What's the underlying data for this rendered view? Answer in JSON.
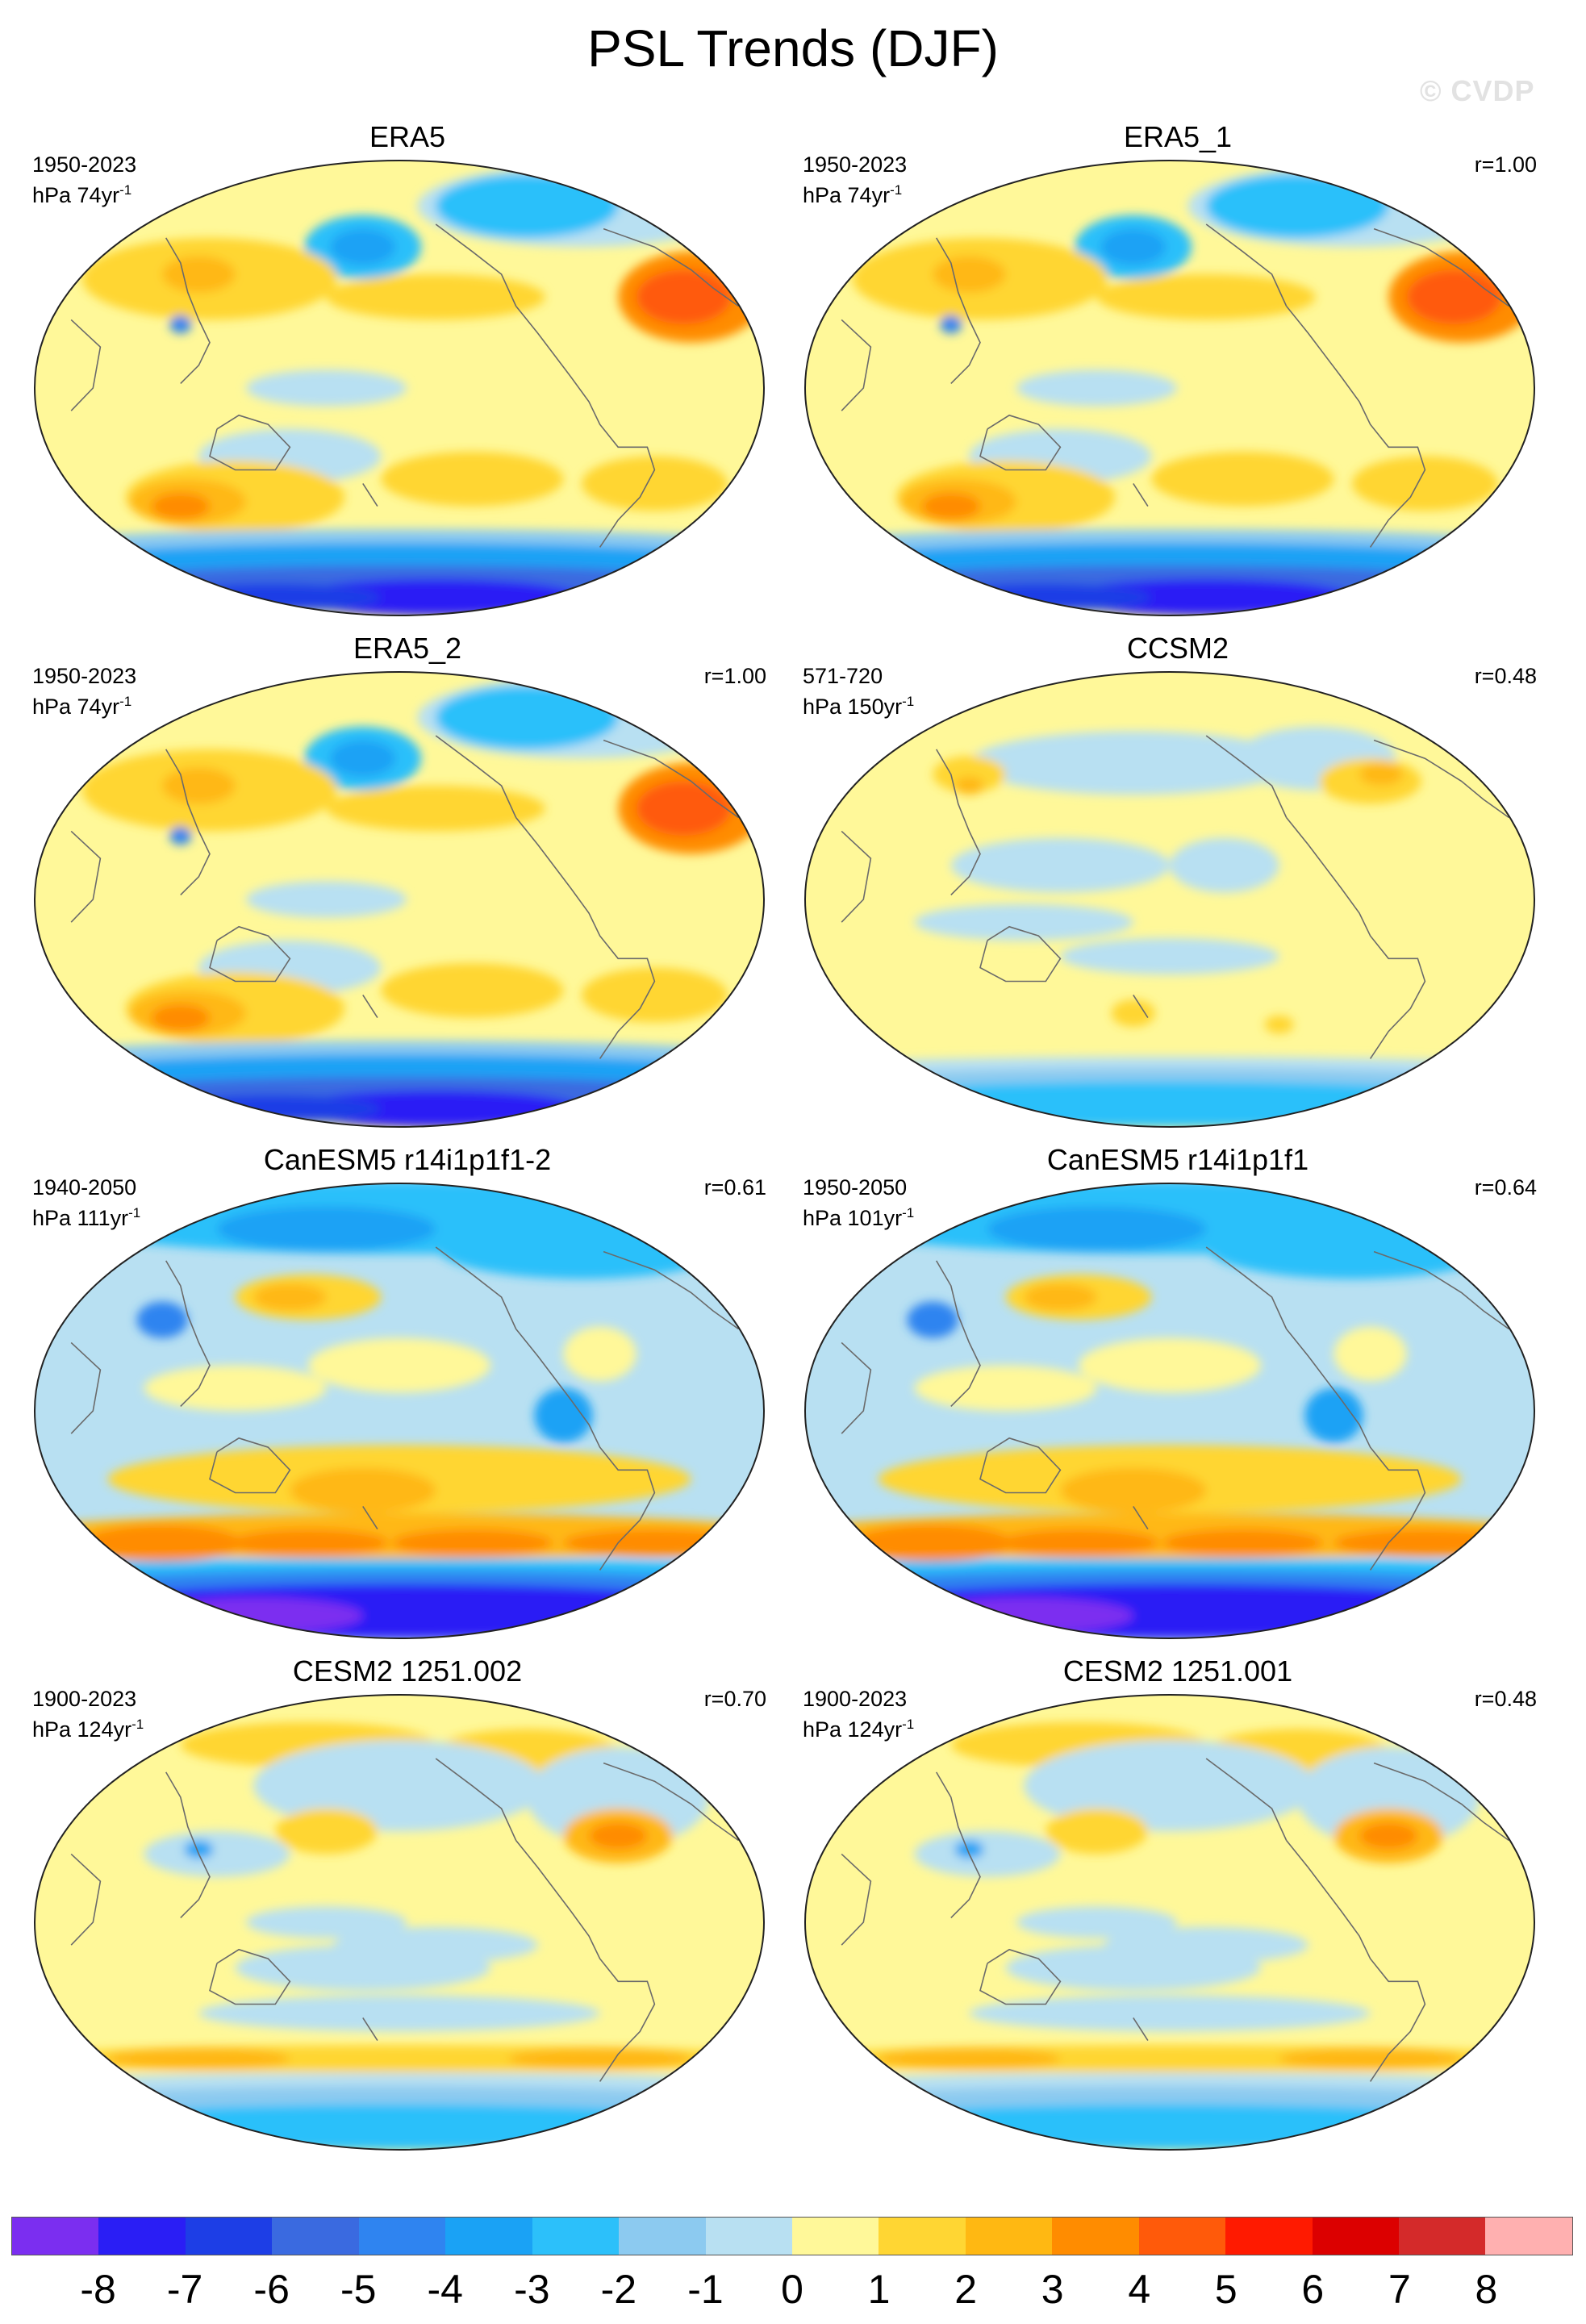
{
  "title": "PSL Trends (DJF)",
  "watermark": "© CVDP",
  "panels": [
    {
      "title": "ERA5",
      "period": "1950-2023",
      "units": "hPa 74yr",
      "units_exp": "-1",
      "corr": "",
      "style": "era"
    },
    {
      "title": "ERA5_1",
      "period": "1950-2023",
      "units": "hPa 74yr",
      "units_exp": "-1",
      "corr": "r=1.00",
      "style": "era"
    },
    {
      "title": "ERA5_2",
      "period": "1950-2023",
      "units": "hPa 74yr",
      "units_exp": "-1",
      "corr": "r=1.00",
      "style": "era"
    },
    {
      "title": "CCSM2",
      "period": "571-720",
      "units": "hPa 150yr",
      "units_exp": "-1",
      "corr": "r=0.48",
      "style": "weak"
    },
    {
      "title": "CanESM5 r14i1p1f1-2",
      "period": "1940-2050",
      "units": "hPa 111yr",
      "units_exp": "-1",
      "corr": "r=0.61",
      "style": "canesm"
    },
    {
      "title": "CanESM5 r14i1p1f1",
      "period": "1950-2050",
      "units": "hPa 101yr",
      "units_exp": "-1",
      "corr": "r=0.64",
      "style": "canesm"
    },
    {
      "title": "CESM2 1251.002",
      "period": "1900-2023",
      "units": "hPa 124yr",
      "units_exp": "-1",
      "corr": "r=0.70",
      "style": "cesm"
    },
    {
      "title": "CESM2 1251.001",
      "period": "1900-2023",
      "units": "hPa 124yr",
      "units_exp": "-1",
      "corr": "r=0.48",
      "style": "cesm"
    }
  ],
  "colorbar": {
    "colors": [
      "#7b2ef0",
      "#2a1ef5",
      "#1d3ee6",
      "#3a6ae0",
      "#2f84f0",
      "#1aa2f5",
      "#2cc0fa",
      "#8ccaf0",
      "#b8e0f2",
      "#fff899",
      "#ffd633",
      "#ffb812",
      "#ff8c00",
      "#ff5a0a",
      "#ff1a00",
      "#dc0000",
      "#d42a2a",
      "#ffb0b0"
    ],
    "labels": [
      "-8",
      "-7",
      "-6",
      "-5",
      "-4",
      "-3",
      "-2",
      "-1",
      "0",
      "1",
      "2",
      "3",
      "4",
      "5",
      "6",
      "7",
      "8"
    ]
  }
}
